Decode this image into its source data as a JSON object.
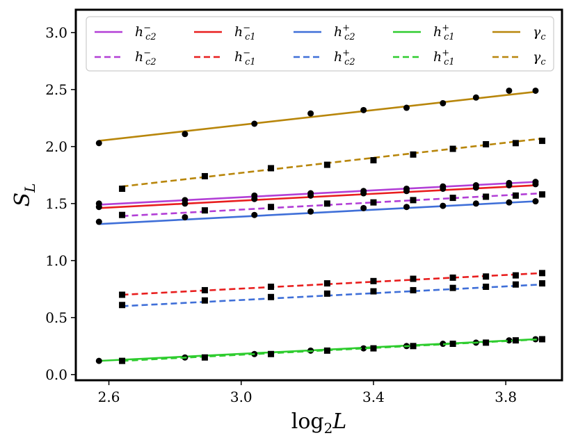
{
  "chart_data": {
    "type": "scatter",
    "title": "",
    "xlabel": "log2L",
    "ylabel": "S_L",
    "xlim": [
      2.5,
      3.97
    ],
    "ylim": [
      -0.05,
      3.2
    ],
    "x_ticks": [
      "2.6",
      "3.0",
      "3.4",
      "3.8"
    ],
    "y_ticks": [
      "0.0",
      "0.5",
      "1.0",
      "1.5",
      "2.0",
      "2.5",
      "3.0"
    ],
    "grid": false,
    "legend_position": "top",
    "series": [
      {
        "name": "h_c2^-",
        "base": "h",
        "sub": "c2",
        "sup": "−",
        "color": "#b23fd6",
        "dash": false,
        "marker": "circle",
        "x": [
          2.57,
          2.83,
          3.04,
          3.21,
          3.37,
          3.5,
          3.61,
          3.71,
          3.81,
          3.89
        ],
        "y": [
          1.5,
          1.53,
          1.57,
          1.59,
          1.61,
          1.63,
          1.65,
          1.66,
          1.68,
          1.69
        ],
        "fit": [
          [
            2.57,
            1.49
          ],
          [
            3.89,
            1.69
          ]
        ]
      },
      {
        "name": "h_c1^-",
        "base": "h",
        "sub": "c1",
        "sup": "−",
        "color": "#e81e1e",
        "dash": false,
        "marker": "circle",
        "x": [
          2.57,
          2.83,
          3.04,
          3.21,
          3.37,
          3.5,
          3.61,
          3.71,
          3.81,
          3.89
        ],
        "y": [
          1.47,
          1.5,
          1.54,
          1.57,
          1.59,
          1.61,
          1.63,
          1.64,
          1.66,
          1.67
        ],
        "fit": [
          [
            2.57,
            1.46
          ],
          [
            3.89,
            1.66
          ]
        ]
      },
      {
        "name": "h_c2^+",
        "base": "h",
        "sub": "c2",
        "sup": "+",
        "color": "#3f6fd8",
        "dash": false,
        "marker": "circle",
        "x": [
          2.57,
          2.83,
          3.04,
          3.21,
          3.37,
          3.5,
          3.61,
          3.71,
          3.81,
          3.89
        ],
        "y": [
          1.34,
          1.38,
          1.4,
          1.43,
          1.46,
          1.47,
          1.48,
          1.5,
          1.51,
          1.52
        ],
        "fit": [
          [
            2.57,
            1.32
          ],
          [
            3.89,
            1.52
          ]
        ]
      },
      {
        "name": "h_c1^+",
        "base": "h",
        "sub": "c1",
        "sup": "+",
        "color": "#2ecc2e",
        "dash": false,
        "marker": "circle",
        "x": [
          2.57,
          2.83,
          3.04,
          3.21,
          3.37,
          3.5,
          3.61,
          3.71,
          3.81,
          3.89
        ],
        "y": [
          0.12,
          0.15,
          0.18,
          0.21,
          0.23,
          0.25,
          0.27,
          0.28,
          0.3,
          0.31
        ],
        "fit": [
          [
            2.57,
            0.12
          ],
          [
            3.89,
            0.31
          ]
        ]
      },
      {
        "name": "gamma_c",
        "base": "γ",
        "sub": "c",
        "sup": "",
        "color": "#b8860b",
        "dash": false,
        "marker": "circle",
        "x": [
          2.57,
          2.83,
          3.04,
          3.21,
          3.37,
          3.5,
          3.61,
          3.71,
          3.81,
          3.89
        ],
        "y": [
          2.03,
          2.11,
          2.2,
          2.29,
          2.32,
          2.34,
          2.38,
          2.43,
          2.49,
          2.49
        ],
        "fit": [
          [
            2.57,
            2.05
          ],
          [
            3.89,
            2.48
          ]
        ]
      },
      {
        "name": "h_c2^- (dashed)",
        "base": "h",
        "sub": "c2",
        "sup": "−",
        "color": "#b23fd6",
        "dash": true,
        "marker": "square",
        "x": [
          2.64,
          2.89,
          3.09,
          3.26,
          3.4,
          3.52,
          3.64,
          3.74,
          3.83,
          3.91
        ],
        "y": [
          1.4,
          1.44,
          1.47,
          1.5,
          1.51,
          1.53,
          1.55,
          1.56,
          1.57,
          1.58
        ],
        "fit": [
          [
            2.64,
            1.39
          ],
          [
            3.91,
            1.59
          ]
        ]
      },
      {
        "name": "h_c1^- (dashed)",
        "base": "h",
        "sub": "c1",
        "sup": "−",
        "color": "#e81e1e",
        "dash": true,
        "marker": "square",
        "x": [
          2.64,
          2.89,
          3.09,
          3.26,
          3.4,
          3.52,
          3.64,
          3.74,
          3.83,
          3.91
        ],
        "y": [
          0.7,
          0.74,
          0.77,
          0.8,
          0.82,
          0.84,
          0.85,
          0.86,
          0.87,
          0.89
        ],
        "fit": [
          [
            2.64,
            0.7
          ],
          [
            3.91,
            0.89
          ]
        ]
      },
      {
        "name": "h_c2^+ (dashed)",
        "base": "h",
        "sub": "c2",
        "sup": "+",
        "color": "#3f6fd8",
        "dash": true,
        "marker": "square",
        "x": [
          2.64,
          2.89,
          3.09,
          3.26,
          3.4,
          3.52,
          3.64,
          3.74,
          3.83,
          3.91
        ],
        "y": [
          0.61,
          0.65,
          0.68,
          0.71,
          0.73,
          0.74,
          0.76,
          0.77,
          0.79,
          0.8
        ],
        "fit": [
          [
            2.64,
            0.6
          ],
          [
            3.91,
            0.79
          ]
        ]
      },
      {
        "name": "h_c1^+ (dashed)",
        "base": "h",
        "sub": "c1",
        "sup": "+",
        "color": "#2ecc2e",
        "dash": true,
        "marker": "square",
        "x": [
          2.64,
          2.89,
          3.09,
          3.26,
          3.4,
          3.52,
          3.64,
          3.74,
          3.83,
          3.91
        ],
        "y": [
          0.12,
          0.15,
          0.18,
          0.21,
          0.23,
          0.25,
          0.27,
          0.28,
          0.3,
          0.31
        ],
        "fit": [
          [
            2.64,
            0.12
          ],
          [
            3.91,
            0.31
          ]
        ]
      },
      {
        "name": "gamma_c (dashed)",
        "base": "γ",
        "sub": "c",
        "sup": "",
        "color": "#b8860b",
        "dash": true,
        "marker": "square",
        "x": [
          2.64,
          2.89,
          3.09,
          3.26,
          3.4,
          3.52,
          3.64,
          3.74,
          3.83,
          3.91
        ],
        "y": [
          1.63,
          1.74,
          1.81,
          1.84,
          1.88,
          1.93,
          1.98,
          2.02,
          2.03,
          2.05
        ],
        "fit": [
          [
            2.64,
            1.65
          ],
          [
            3.91,
            2.07
          ]
        ]
      }
    ]
  }
}
